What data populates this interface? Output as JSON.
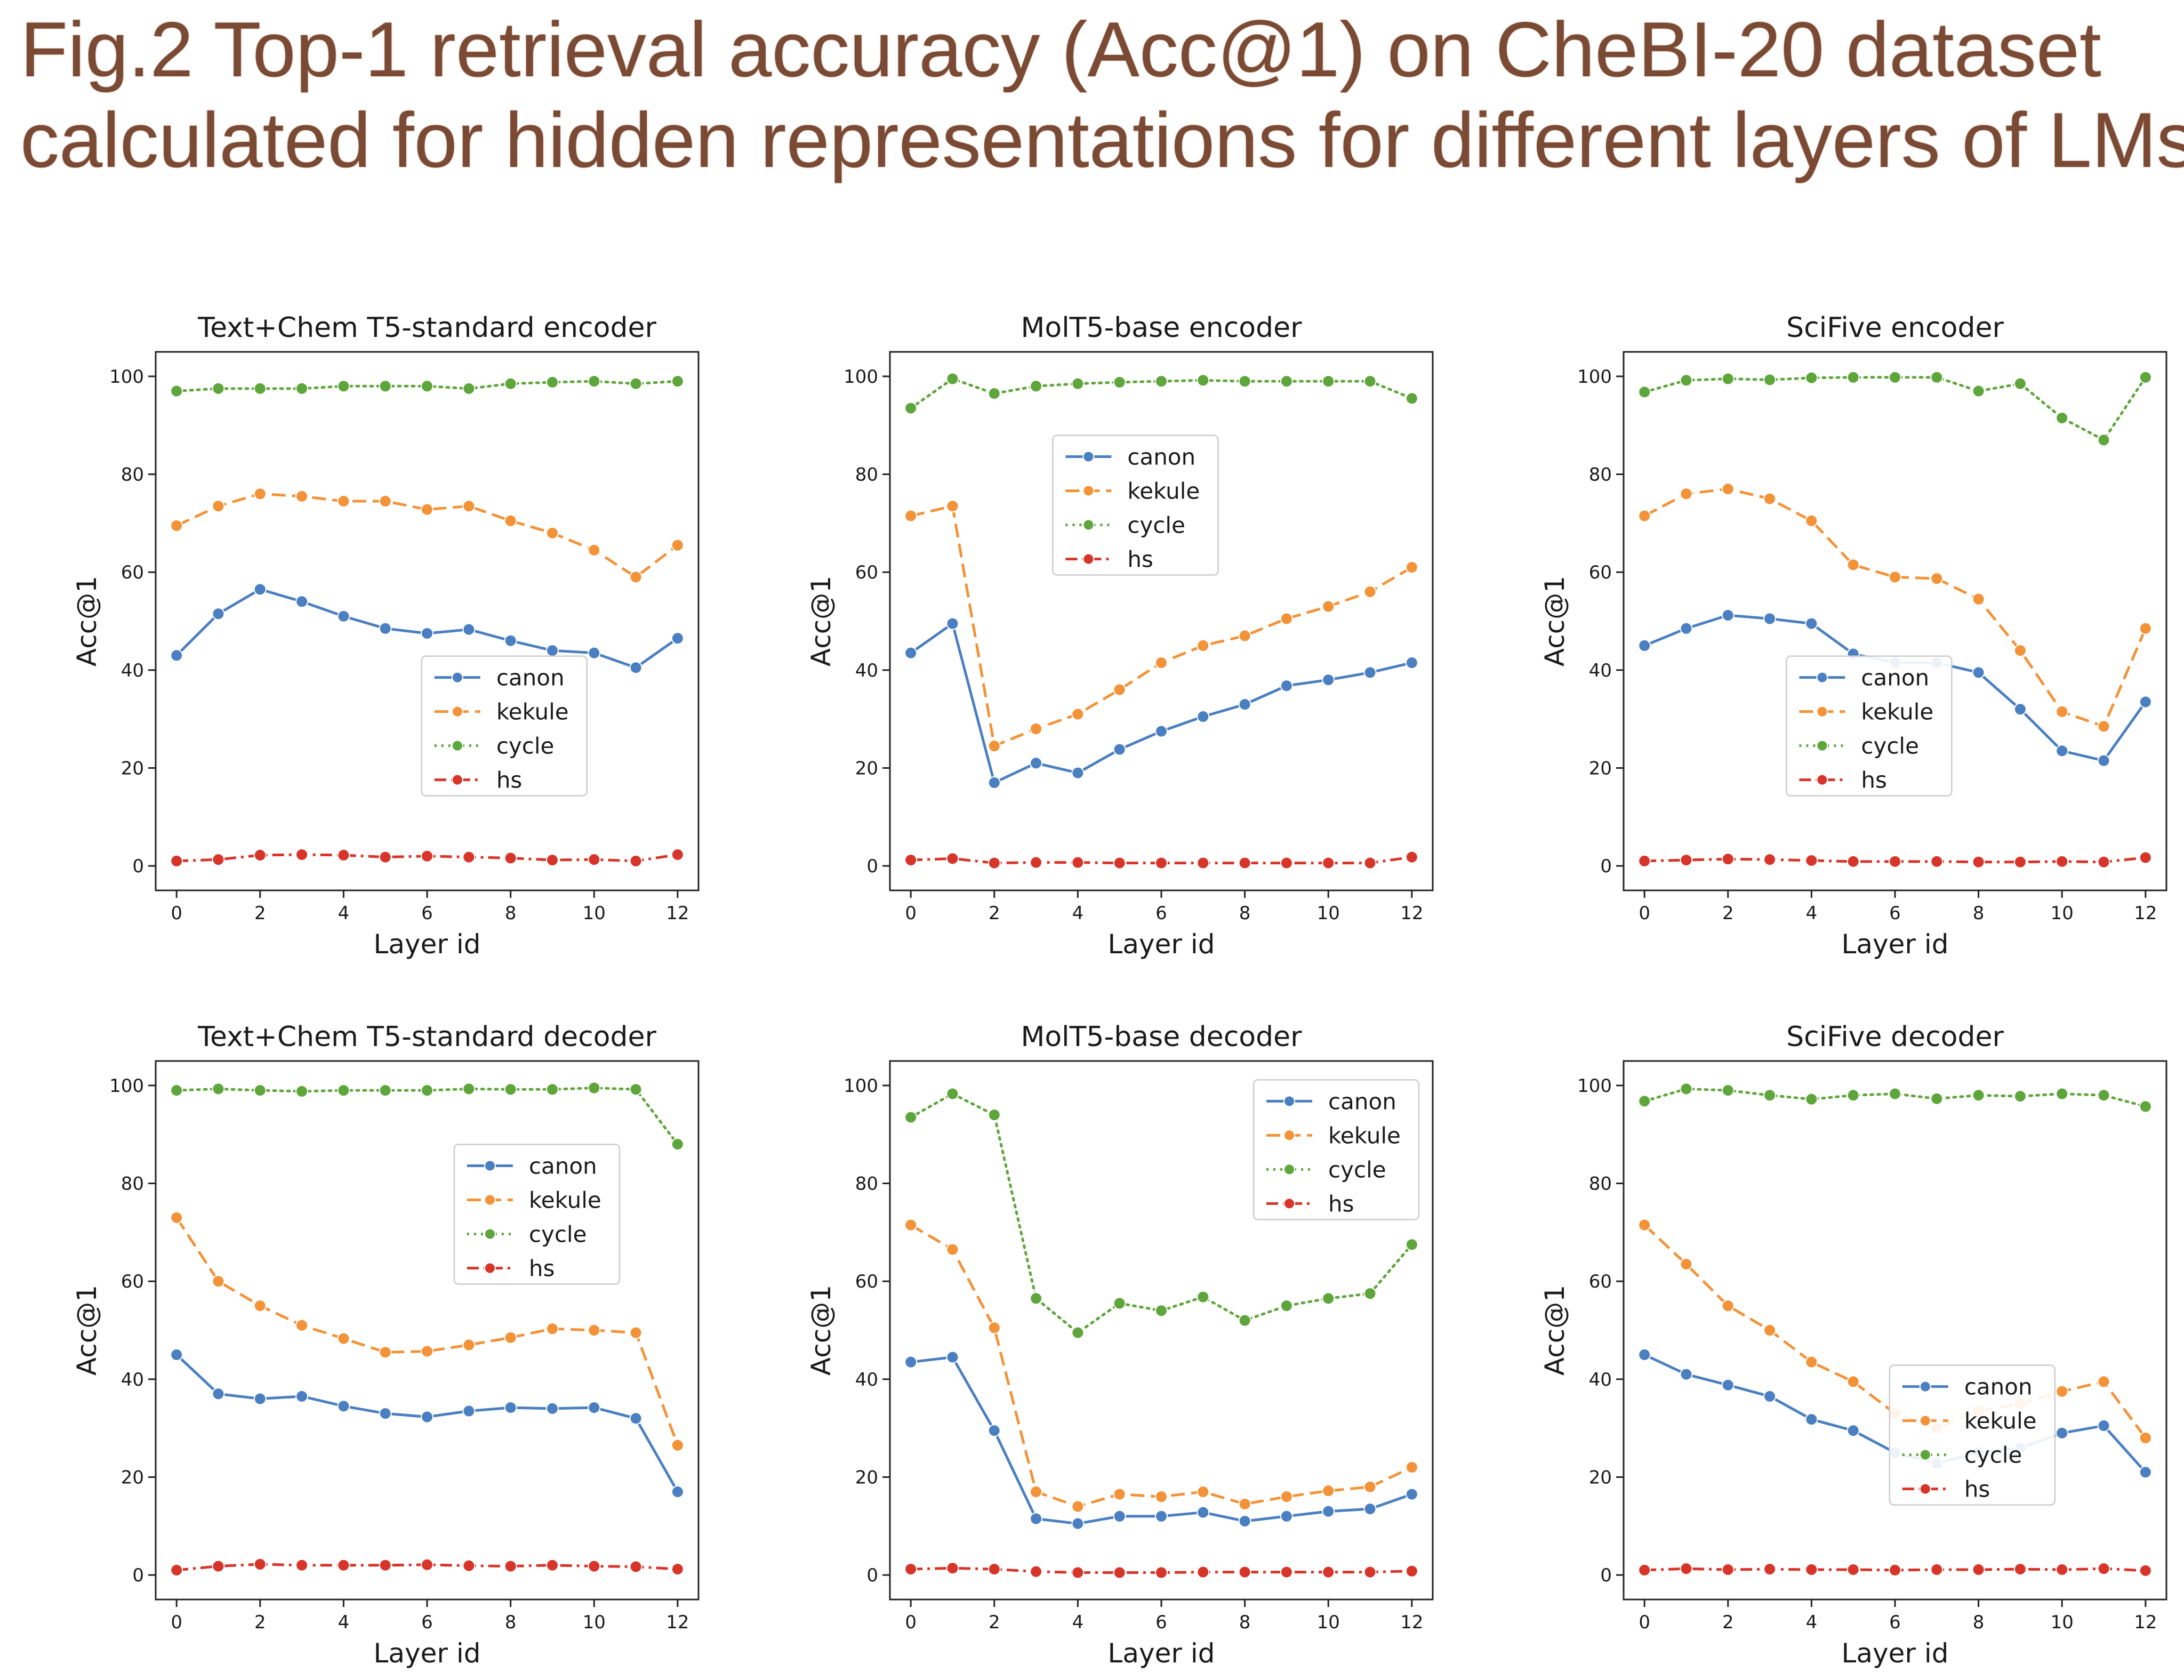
{
  "figure": {
    "title_line1": "Fig.2 Top-1 retrieval accuracy (Acc@1) on CheBI-20 dataset",
    "title_line2": "calculated for hidden representations for different layers of LMs"
  },
  "series_styles": [
    {
      "name": "canon",
      "color": "#4a7fc1",
      "dash": "solid"
    },
    {
      "name": "kekule",
      "color": "#f39237",
      "dash": "dashed"
    },
    {
      "name": "cycle",
      "color": "#5ea63b",
      "dash": "dotted"
    },
    {
      "name": "hs",
      "color": "#d8352a",
      "dash": "dashdot"
    }
  ],
  "chart_data": [
    {
      "type": "line",
      "title": "Text+Chem T5-standard encoder",
      "xlabel": "Layer id",
      "ylabel": "Acc@1",
      "x": [
        0,
        1,
        2,
        3,
        4,
        5,
        6,
        7,
        8,
        9,
        10,
        11,
        12
      ],
      "xlim": [
        -0.5,
        12.5
      ],
      "ylim": [
        -5,
        105
      ],
      "xticks": [
        0,
        2,
        4,
        6,
        8,
        10,
        12
      ],
      "yticks": [
        0,
        20,
        40,
        60,
        80,
        100
      ],
      "legend": "center-right",
      "series": [
        {
          "name": "canon",
          "values": [
            43,
            51.5,
            56.5,
            54,
            51,
            48.5,
            47.5,
            48.3,
            46,
            44,
            43.5,
            40.5,
            46.5
          ]
        },
        {
          "name": "kekule",
          "values": [
            69.5,
            73.5,
            76,
            75.5,
            74.5,
            74.5,
            72.8,
            73.5,
            70.5,
            68,
            64.5,
            59,
            65.5
          ]
        },
        {
          "name": "cycle",
          "values": [
            97,
            97.5,
            97.5,
            97.5,
            98,
            98,
            98,
            97.5,
            98.5,
            98.8,
            99,
            98.5,
            99
          ]
        },
        {
          "name": "hs",
          "values": [
            1,
            1.3,
            2.2,
            2.3,
            2.2,
            1.8,
            2,
            1.8,
            1.6,
            1.2,
            1.3,
            1,
            2.3
          ]
        }
      ]
    },
    {
      "type": "line",
      "title": "MolT5-base encoder",
      "xlabel": "Layer id",
      "ylabel": "Acc@1",
      "x": [
        0,
        1,
        2,
        3,
        4,
        5,
        6,
        7,
        8,
        9,
        10,
        11,
        12
      ],
      "xlim": [
        -0.5,
        12.5
      ],
      "ylim": [
        -5,
        105
      ],
      "xticks": [
        0,
        2,
        4,
        6,
        8,
        10,
        12
      ],
      "yticks": [
        0,
        20,
        40,
        60,
        80,
        100
      ],
      "legend": "upper-center",
      "series": [
        {
          "name": "canon",
          "values": [
            43.5,
            49.5,
            17,
            21,
            19,
            23.8,
            27.5,
            30.5,
            33,
            36.8,
            38,
            39.5,
            41.5
          ]
        },
        {
          "name": "kekule",
          "values": [
            71.5,
            73.5,
            24.5,
            28,
            31,
            36,
            41.5,
            45,
            47,
            50.5,
            53,
            56,
            61
          ]
        },
        {
          "name": "cycle",
          "values": [
            93.5,
            99.5,
            96.5,
            98,
            98.5,
            98.8,
            99,
            99.2,
            99,
            99,
            99,
            99,
            95.5
          ]
        },
        {
          "name": "hs",
          "values": [
            1.2,
            1.5,
            0.6,
            0.7,
            0.7,
            0.6,
            0.6,
            0.6,
            0.6,
            0.6,
            0.6,
            0.6,
            1.8
          ]
        }
      ]
    },
    {
      "type": "line",
      "title": "SciFive encoder",
      "xlabel": "Layer id",
      "ylabel": "Acc@1",
      "x": [
        0,
        1,
        2,
        3,
        4,
        5,
        6,
        7,
        8,
        9,
        10,
        11,
        12
      ],
      "xlim": [
        -0.5,
        12.5
      ],
      "ylim": [
        -5,
        105
      ],
      "xticks": [
        0,
        2,
        4,
        6,
        8,
        10,
        12
      ],
      "yticks": [
        0,
        20,
        40,
        60,
        80,
        100
      ],
      "legend": "lower-left",
      "series": [
        {
          "name": "canon",
          "values": [
            45,
            48.5,
            51.2,
            50.5,
            49.5,
            43.3,
            41.5,
            41.5,
            39.5,
            32,
            23.5,
            21.5,
            33.5
          ]
        },
        {
          "name": "kekule",
          "values": [
            71.5,
            76,
            77,
            75,
            70.5,
            61.5,
            59,
            58.7,
            54.5,
            44,
            31.5,
            28.5,
            48.5
          ]
        },
        {
          "name": "cycle",
          "values": [
            96.8,
            99.2,
            99.5,
            99.3,
            99.7,
            99.8,
            99.8,
            99.8,
            97,
            98.5,
            91.5,
            87,
            99.8
          ]
        },
        {
          "name": "hs",
          "values": [
            1,
            1.2,
            1.4,
            1.3,
            1.1,
            0.9,
            0.9,
            0.9,
            0.8,
            0.8,
            0.9,
            0.8,
            1.7
          ]
        }
      ]
    },
    {
      "type": "line",
      "title": "Text+Chem T5-standard decoder",
      "xlabel": "Layer id",
      "ylabel": "Acc@1",
      "x": [
        0,
        1,
        2,
        3,
        4,
        5,
        6,
        7,
        8,
        9,
        10,
        11,
        12
      ],
      "xlim": [
        -0.5,
        12.5
      ],
      "ylim": [
        -5,
        105
      ],
      "xticks": [
        0,
        2,
        4,
        6,
        8,
        10,
        12
      ],
      "yticks": [
        0,
        20,
        40,
        60,
        80,
        100
      ],
      "legend": "upper-right",
      "series": [
        {
          "name": "canon",
          "values": [
            45,
            37,
            36,
            36.5,
            34.5,
            33,
            32.3,
            33.5,
            34.2,
            34,
            34.2,
            32,
            17
          ]
        },
        {
          "name": "kekule",
          "values": [
            73,
            60,
            55,
            51,
            48.3,
            45.5,
            45.7,
            47,
            48.5,
            50.3,
            50,
            49.5,
            26.5
          ]
        },
        {
          "name": "cycle",
          "values": [
            99,
            99.3,
            99,
            98.8,
            99,
            99,
            99,
            99.3,
            99.2,
            99.2,
            99.5,
            99.2,
            88
          ]
        },
        {
          "name": "hs",
          "values": [
            1,
            1.8,
            2.2,
            2,
            2,
            2,
            2.1,
            1.9,
            1.8,
            2,
            1.8,
            1.7,
            1.2
          ]
        }
      ]
    },
    {
      "type": "line",
      "title": "MolT5-base decoder",
      "xlabel": "Layer id",
      "ylabel": "Acc@1",
      "x": [
        0,
        1,
        2,
        3,
        4,
        5,
        6,
        7,
        8,
        9,
        10,
        11,
        12
      ],
      "xlim": [
        -0.5,
        12.5
      ],
      "ylim": [
        -5,
        105
      ],
      "xticks": [
        0,
        2,
        4,
        6,
        8,
        10,
        12
      ],
      "yticks": [
        0,
        20,
        40,
        60,
        80,
        100
      ],
      "legend": "upper-right",
      "series": [
        {
          "name": "canon",
          "values": [
            43.5,
            44.5,
            29.5,
            11.5,
            10.5,
            12,
            12,
            12.8,
            11,
            12,
            13,
            13.5,
            16.5
          ]
        },
        {
          "name": "kekule",
          "values": [
            71.5,
            66.5,
            50.5,
            17,
            14,
            16.5,
            16,
            17,
            14.5,
            16,
            17.2,
            18,
            22
          ]
        },
        {
          "name": "cycle",
          "values": [
            93.5,
            98.3,
            94,
            56.5,
            49.5,
            55.5,
            54,
            56.8,
            52,
            55,
            56.5,
            57.5,
            67.5
          ]
        },
        {
          "name": "hs",
          "values": [
            1.2,
            1.4,
            1.2,
            0.7,
            0.5,
            0.5,
            0.5,
            0.6,
            0.6,
            0.6,
            0.6,
            0.6,
            0.8
          ]
        }
      ]
    },
    {
      "type": "line",
      "title": "SciFive decoder",
      "xlabel": "Layer id",
      "ylabel": "Acc@1",
      "x": [
        0,
        1,
        2,
        3,
        4,
        5,
        6,
        7,
        8,
        9,
        10,
        11,
        12
      ],
      "xlim": [
        -0.5,
        12.5
      ],
      "ylim": [
        -5,
        105
      ],
      "xticks": [
        0,
        2,
        4,
        6,
        8,
        10,
        12
      ],
      "yticks": [
        0,
        20,
        40,
        60,
        80,
        100
      ],
      "legend": "center-right",
      "series": [
        {
          "name": "canon",
          "values": [
            45,
            41,
            38.8,
            36.5,
            31.8,
            29.5,
            25,
            22.8,
            25,
            26,
            29,
            30.5,
            21
          ]
        },
        {
          "name": "kekule",
          "values": [
            71.5,
            63.5,
            55,
            50,
            43.5,
            39.5,
            33,
            30,
            33.5,
            35,
            37.5,
            39.5,
            28
          ]
        },
        {
          "name": "cycle",
          "values": [
            96.8,
            99.3,
            99,
            98,
            97.2,
            98,
            98.3,
            97.3,
            98,
            97.8,
            98.3,
            98,
            95.7
          ]
        },
        {
          "name": "hs",
          "values": [
            1,
            1.3,
            1.1,
            1.2,
            1.1,
            1.1,
            1,
            1.1,
            1.1,
            1.2,
            1.1,
            1.3,
            0.9
          ]
        }
      ]
    }
  ]
}
